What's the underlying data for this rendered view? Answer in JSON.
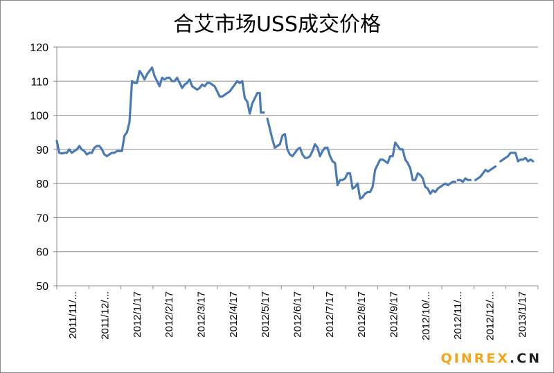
{
  "chart_data": {
    "type": "line",
    "title": "合艾市场USS成交价格",
    "xlabel": "",
    "ylabel": "",
    "ylim": [
      50,
      120
    ],
    "yticks": [
      50,
      60,
      70,
      80,
      90,
      100,
      110,
      120
    ],
    "grid": true,
    "legend": "none",
    "color": "#4a7ab5",
    "x_labels": [
      "2011/11/...",
      "2011/12/...",
      "2012/1/17",
      "2012/2/17",
      "2012/3/17",
      "2012/4/17",
      "2012/5/17",
      "2012/6/17",
      "2012/7/17",
      "2012/8/17",
      "2012/9/17",
      "2012/10/...",
      "2012/11/...",
      "2012/12/...",
      "2013/1/17"
    ],
    "segments": [
      [
        [
          0,
          92.5
        ],
        [
          0.5,
          89
        ],
        [
          1,
          88.8
        ],
        [
          1.5,
          89
        ],
        [
          2,
          89
        ],
        [
          2.5,
          90
        ],
        [
          3,
          89
        ],
        [
          3.5,
          89.5
        ],
        [
          4,
          90
        ],
        [
          4.5,
          91
        ],
        [
          5,
          90
        ],
        [
          5.5,
          89.5
        ],
        [
          6,
          88.5
        ],
        [
          6.5,
          89
        ],
        [
          7,
          89
        ],
        [
          7.5,
          90.5
        ],
        [
          8,
          91
        ],
        [
          8.5,
          91
        ],
        [
          9,
          90
        ],
        [
          9.5,
          88.5
        ],
        [
          10,
          88
        ],
        [
          10.5,
          88.5
        ],
        [
          11,
          89
        ],
        [
          11.5,
          89
        ],
        [
          12,
          89.5
        ],
        [
          12.5,
          89.5
        ],
        [
          13,
          89.5
        ],
        [
          13.5,
          94
        ],
        [
          14,
          95
        ],
        [
          14.5,
          98
        ],
        [
          15,
          110
        ],
        [
          15.5,
          109.5
        ],
        [
          16,
          109.5
        ],
        [
          16.5,
          113
        ],
        [
          17,
          112
        ],
        [
          17.5,
          110.5
        ],
        [
          18,
          112
        ],
        [
          18.5,
          113
        ],
        [
          19,
          114
        ],
        [
          19.5,
          111.5
        ],
        [
          20,
          110
        ],
        [
          20.5,
          108.5
        ],
        [
          21,
          111
        ],
        [
          21.5,
          110.5
        ],
        [
          22,
          111
        ],
        [
          22.5,
          111
        ],
        [
          23,
          110
        ],
        [
          23.5,
          110
        ],
        [
          24,
          111
        ],
        [
          24.5,
          109.5
        ],
        [
          25,
          108
        ],
        [
          25.5,
          109
        ],
        [
          26,
          109.5
        ],
        [
          26.5,
          110.5
        ],
        [
          27,
          108.5
        ],
        [
          27.5,
          108
        ],
        [
          28,
          107.5
        ],
        [
          28.5,
          108
        ],
        [
          29,
          109
        ],
        [
          29.5,
          108.5
        ],
        [
          30,
          109.5
        ],
        [
          30.5,
          109.5
        ],
        [
          31,
          109
        ],
        [
          31.5,
          108.5
        ],
        [
          32,
          107
        ],
        [
          32.5,
          105.5
        ],
        [
          33,
          105.5
        ],
        [
          33.5,
          106
        ],
        [
          34,
          106.5
        ],
        [
          34.5,
          107
        ],
        [
          35,
          108
        ],
        [
          35.5,
          109
        ],
        [
          36,
          110
        ],
        [
          36.5,
          109.5
        ],
        [
          37,
          110
        ],
        [
          37.5,
          105
        ],
        [
          38,
          104
        ],
        [
          38.5,
          100.5
        ],
        [
          39,
          103.5
        ],
        [
          39.5,
          105
        ],
        [
          40,
          106.5
        ],
        [
          40.5,
          106.5
        ],
        [
          40.7,
          100.8
        ],
        [
          41.3,
          100.8
        ]
      ],
      [
        [
          42,
          99
        ],
        [
          42.5,
          96
        ],
        [
          43,
          93
        ],
        [
          43.5,
          90.5
        ],
        [
          44,
          91
        ],
        [
          44.5,
          91.5
        ],
        [
          45,
          94
        ],
        [
          45.5,
          94.5
        ],
        [
          46,
          90
        ],
        [
          46.5,
          88.5
        ],
        [
          47,
          88
        ],
        [
          47.5,
          89
        ],
        [
          48,
          90
        ],
        [
          48.5,
          90.5
        ],
        [
          49,
          88.5
        ],
        [
          49.5,
          87.5
        ],
        [
          50,
          87.5
        ],
        [
          50.5,
          88
        ],
        [
          51,
          89.5
        ],
        [
          51.5,
          91.5
        ],
        [
          52,
          90.5
        ],
        [
          52.5,
          88
        ],
        [
          53,
          89.5
        ],
        [
          53.5,
          90.5
        ],
        [
          54,
          90.5
        ],
        [
          54.5,
          88
        ],
        [
          55,
          86.5
        ],
        [
          55.5,
          86
        ],
        [
          56,
          79.5
        ],
        [
          56.5,
          81
        ],
        [
          57,
          81
        ],
        [
          57.5,
          81.5
        ],
        [
          58,
          83
        ],
        [
          58.5,
          83
        ],
        [
          59,
          78.5
        ],
        [
          59.5,
          79
        ],
        [
          60,
          80
        ],
        [
          60.5,
          75.5
        ],
        [
          61,
          76
        ],
        [
          61.5,
          77
        ],
        [
          62,
          77.5
        ],
        [
          62.5,
          77.5
        ],
        [
          63,
          79
        ],
        [
          63.5,
          84
        ],
        [
          64,
          85.5
        ],
        [
          64.5,
          87
        ],
        [
          65,
          87
        ],
        [
          65.5,
          86.5
        ],
        [
          66,
          86
        ],
        [
          66.5,
          88
        ],
        [
          67,
          88
        ],
        [
          67.5,
          92
        ],
        [
          68,
          91
        ],
        [
          68.5,
          90
        ],
        [
          69,
          90
        ],
        [
          69.5,
          87
        ],
        [
          70,
          86
        ],
        [
          70.5,
          84.5
        ],
        [
          71,
          81
        ],
        [
          71.5,
          81
        ],
        [
          72,
          83
        ],
        [
          72.5,
          82.5
        ],
        [
          73,
          81.5
        ],
        [
          73.5,
          79
        ],
        [
          74,
          78.5
        ],
        [
          74.5,
          77
        ],
        [
          75,
          78
        ],
        [
          75.5,
          77.5
        ],
        [
          76,
          78.5
        ],
        [
          76.5,
          79
        ],
        [
          77,
          79.5
        ],
        [
          77.5,
          80
        ],
        [
          78,
          79.5
        ],
        [
          78.5,
          80
        ],
        [
          79,
          80.5
        ],
        [
          79.5,
          80.5
        ]
      ],
      [
        [
          80,
          81
        ],
        [
          80.5,
          81
        ],
        [
          81,
          80.5
        ],
        [
          81.5,
          81.5
        ],
        [
          82,
          81
        ],
        [
          82.5,
          81
        ]
      ],
      [
        [
          83.5,
          81
        ],
        [
          84,
          81.5
        ],
        [
          84.5,
          82
        ],
        [
          85,
          83
        ],
        [
          85.5,
          84
        ],
        [
          86,
          83.5
        ],
        [
          86.5,
          84
        ],
        [
          87,
          84.5
        ],
        [
          87.5,
          85
        ]
      ],
      [
        [
          88.5,
          86.5
        ],
        [
          89,
          87
        ],
        [
          89.5,
          87.5
        ],
        [
          90,
          88
        ],
        [
          90.5,
          89
        ],
        [
          91,
          89
        ],
        [
          91.5,
          89
        ],
        [
          92,
          86.5
        ],
        [
          92.5,
          87
        ],
        [
          93,
          87
        ],
        [
          93.5,
          87.5
        ],
        [
          94,
          86.5
        ],
        [
          94.5,
          87
        ],
        [
          95,
          86.5
        ]
      ]
    ]
  },
  "watermark": {
    "left": "QINREX",
    "right": ".CN"
  }
}
